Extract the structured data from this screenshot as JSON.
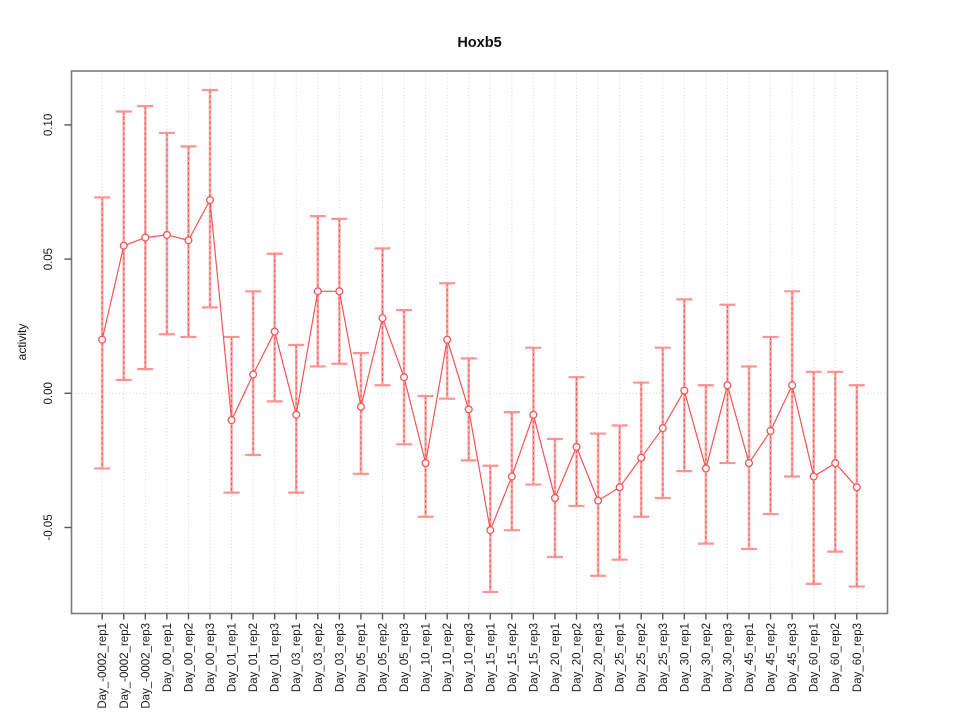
{
  "chart_data": {
    "type": "line",
    "title": "Hoxb5",
    "xlabel": "",
    "ylabel": "activity",
    "legend": "none",
    "grid": {
      "vertical_gridlines": "dotted at every category",
      "zero_line": "dotted horizontal at 0.00"
    },
    "ylim": [
      -0.081,
      0.12
    ],
    "ytick_values": [
      -0.05,
      0.0,
      0.05,
      0.1
    ],
    "ytick_labels": [
      "-0.05",
      "0.00",
      "0.05",
      "0.10"
    ],
    "categories": [
      "Day_-0002_rep1",
      "Day_-0002_rep2",
      "Day_-0002_rep3",
      "Day_00_rep1",
      "Day_00_rep2",
      "Day_00_rep3",
      "Day_01_rep1",
      "Day_01_rep2",
      "Day_01_rep3",
      "Day_03_rep1",
      "Day_03_rep2",
      "Day_03_rep3",
      "Day_05_rep1",
      "Day_05_rep2",
      "Day_05_rep3",
      "Day_10_rep1",
      "Day_10_rep2",
      "Day_10_rep3",
      "Day_15_rep1",
      "Day_15_rep2",
      "Day_15_rep3",
      "Day_20_rep1",
      "Day_20_rep2",
      "Day_20_rep3",
      "Day_25_rep1",
      "Day_25_rep2",
      "Day_25_rep3",
      "Day_30_rep1",
      "Day_30_rep2",
      "Day_30_rep3",
      "Day_45_rep1",
      "Day_45_rep2",
      "Day_45_rep3",
      "Day_60_rep1",
      "Day_60_rep2",
      "Day_60_rep3"
    ],
    "series": [
      {
        "name": "activity",
        "marker": "open-circle",
        "values": [
          0.02,
          0.055,
          0.058,
          0.059,
          0.057,
          0.072,
          -0.01,
          0.007,
          0.023,
          -0.008,
          0.038,
          0.038,
          -0.005,
          0.028,
          0.006,
          -0.026,
          0.02,
          -0.006,
          -0.051,
          -0.031,
          -0.008,
          -0.039,
          -0.02,
          -0.04,
          -0.035,
          -0.024,
          -0.013,
          0.001,
          -0.028,
          0.003,
          -0.026,
          -0.014,
          0.003,
          -0.031,
          -0.026,
          -0.035
        ],
        "error_high": [
          0.073,
          0.105,
          0.107,
          0.097,
          0.092,
          0.113,
          0.021,
          0.038,
          0.052,
          0.018,
          0.066,
          0.065,
          0.015,
          0.054,
          0.031,
          -0.001,
          0.041,
          0.013,
          -0.027,
          -0.007,
          0.017,
          -0.017,
          0.006,
          -0.015,
          -0.012,
          0.004,
          0.017,
          0.035,
          0.003,
          0.033,
          0.01,
          0.021,
          0.038,
          0.008,
          0.008,
          0.003
        ],
        "error_low": [
          -0.028,
          0.005,
          0.009,
          0.022,
          0.021,
          0.032,
          -0.037,
          -0.023,
          -0.003,
          -0.037,
          0.01,
          0.011,
          -0.03,
          0.003,
          -0.019,
          -0.046,
          -0.002,
          -0.025,
          -0.074,
          -0.051,
          -0.034,
          -0.061,
          -0.042,
          -0.068,
          -0.062,
          -0.046,
          -0.039,
          -0.029,
          -0.056,
          -0.026,
          -0.058,
          -0.045,
          -0.031,
          -0.071,
          -0.059,
          -0.072
        ]
      }
    ],
    "colors": {
      "series_line": "#f25555",
      "marker_stroke": "#f25555",
      "marker_fill": "#ffffff",
      "error_bar_solid": "#ffabab",
      "error_bar_dash": "#f25555",
      "error_cap": "#ff9292",
      "grid": "#d9d9d9",
      "zero_line": "#d4d4d4",
      "box": "#7a7a7a",
      "tick": "#555555",
      "text": "#1a1a1a"
    }
  }
}
